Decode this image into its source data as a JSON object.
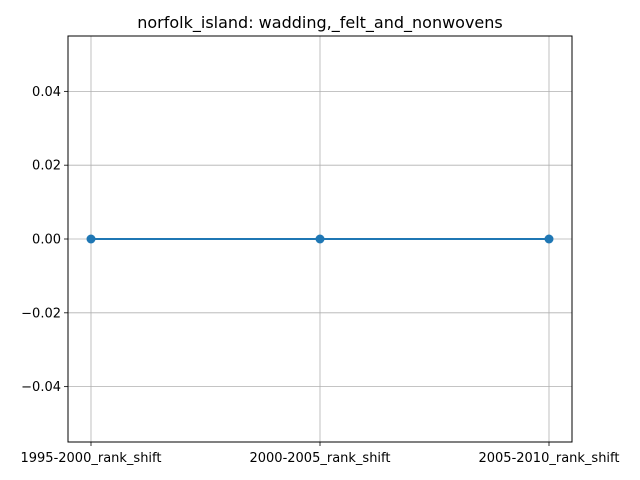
{
  "chart_data": {
    "type": "line",
    "title": "norfolk_island: wadding,_felt_and_nonwovens",
    "xlabel": "",
    "ylabel": "",
    "categories": [
      "1995-2000_rank_shift",
      "2000-2005_rank_shift",
      "2005-2010_rank_shift"
    ],
    "series": [
      {
        "values": [
          0,
          0,
          0
        ],
        "color": "#1f77b4",
        "marker": "circle"
      }
    ],
    "ylim": [
      -0.055,
      0.055
    ],
    "yticks": [
      -0.04,
      -0.02,
      0.0,
      0.02,
      0.04
    ],
    "ytick_labels": [
      "−0.04",
      "−0.02",
      "0.00",
      "0.02",
      "0.04"
    ],
    "grid": true,
    "legend": "none"
  }
}
